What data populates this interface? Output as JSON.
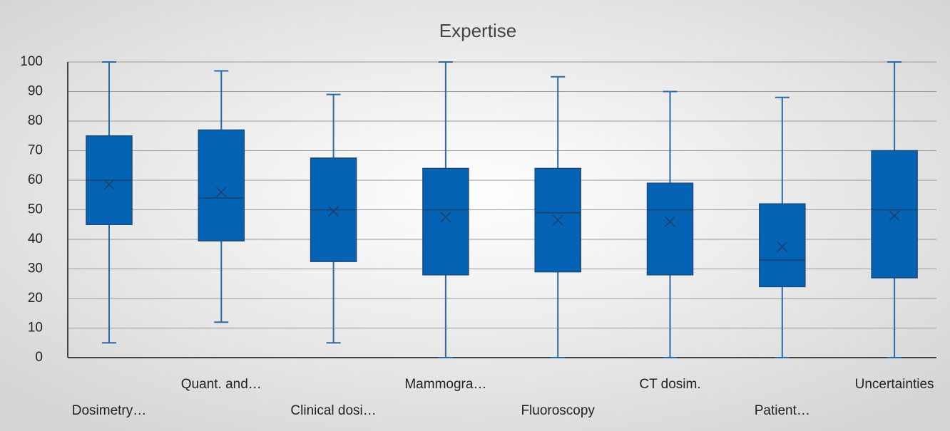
{
  "chart_data": {
    "type": "box",
    "title": "Expertise",
    "categories": [
      "Dosimetry…",
      "Quant. and…",
      "Clinical dosi…",
      "Mammogra…",
      "Fluoroscopy",
      "CT dosim.",
      "Patient…",
      "Uncertainties"
    ],
    "min": [
      5,
      12,
      5,
      0,
      0,
      0,
      0,
      0
    ],
    "q1": [
      45,
      39.5,
      32.5,
      28,
      29,
      28,
      24,
      27
    ],
    "median": [
      60,
      54,
      50,
      50,
      49,
      50,
      33,
      50
    ],
    "q3": [
      75,
      77,
      67.5,
      64,
      64,
      59,
      52,
      70
    ],
    "max": [
      100,
      97,
      89,
      100,
      95,
      90,
      88,
      100
    ],
    "mean": [
      58.5,
      56,
      49.5,
      47.5,
      46.5,
      46,
      37.5,
      48
    ],
    "color": "#0563b5",
    "ylim": [
      0,
      100
    ],
    "yticks": [
      0,
      10,
      20,
      30,
      40,
      50,
      60,
      70,
      80,
      90,
      100
    ],
    "grid": true
  }
}
